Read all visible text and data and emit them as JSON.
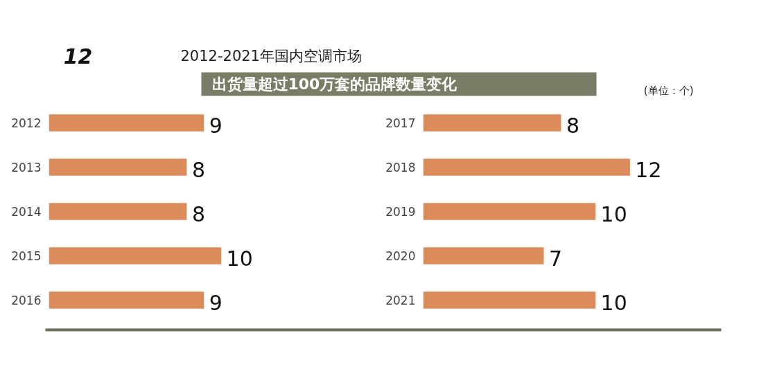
{
  "chart_data": [
    {
      "type": "bar",
      "orientation": "horizontal",
      "title": "2012-2021年国内空调市场",
      "subtitle": "出货量超过100万套的品牌数量变化",
      "annotations": [
        "12",
        "(单位：个)"
      ],
      "categories": [
        "2012",
        "2013",
        "2014",
        "2015",
        "2016"
      ],
      "values": [
        9,
        8,
        8,
        10,
        9
      ],
      "color": "#dc8b5a",
      "data_labels": true,
      "tick_labels": "y"
    },
    {
      "type": "bar",
      "orientation": "horizontal",
      "categories": [
        "2017",
        "2018",
        "2019",
        "2020",
        "2021"
      ],
      "values": [
        8,
        12,
        10,
        7,
        10
      ],
      "color": "#dc8b5a",
      "data_labels": true,
      "tick_labels": "y"
    }
  ]
}
